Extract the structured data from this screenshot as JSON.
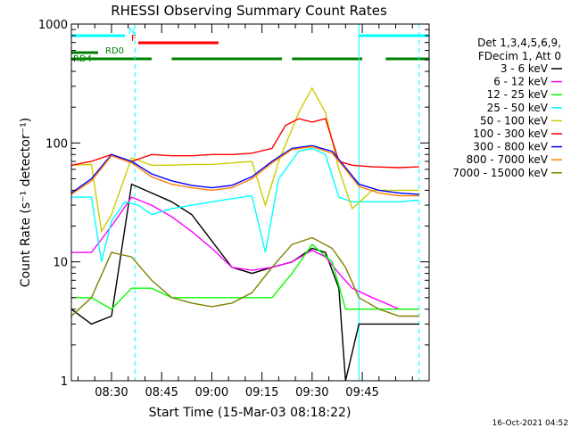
{
  "chart_data": {
    "type": "line",
    "title": "RHESSI Observing Summary Count Rates",
    "xlabel": "Start Time (15-Mar-03 08:18:22)",
    "ylabel": "Count Rate (s⁻¹ detector⁻¹)",
    "ylog": true,
    "ylim": [
      1,
      1000
    ],
    "xlim_minutes_after_0818": [
      0,
      107
    ],
    "x_ticks": [
      {
        "label": "08:30",
        "minute": 12
      },
      {
        "label": "08:45",
        "minute": 27
      },
      {
        "label": "09:00",
        "minute": 42
      },
      {
        "label": "09:15",
        "minute": 57
      },
      {
        "label": "09:30",
        "minute": 72
      },
      {
        "label": "09:45",
        "minute": 87
      }
    ],
    "y_ticks": [
      {
        "label": "1",
        "value": 1
      },
      {
        "label": "10",
        "value": 10
      },
      {
        "label": "100",
        "value": 100
      },
      {
        "label": "1000",
        "value": 1000
      }
    ],
    "legend_header": [
      "Det 1,3,4,5,6,9,",
      "FDecim 1, Att 0"
    ],
    "legend_placement": "right",
    "series": [
      {
        "name": "3 - 6 keV",
        "color": "#000000",
        "x": [
          0,
          6,
          12,
          18,
          24,
          30,
          36,
          42,
          48,
          54,
          60,
          66,
          72,
          76,
          80,
          82,
          86,
          92,
          98,
          104
        ],
        "y": [
          4,
          3,
          3.5,
          45,
          38,
          32,
          25,
          15,
          9,
          8,
          9,
          10,
          13,
          12,
          6,
          1,
          3,
          3,
          3,
          3
        ]
      },
      {
        "name": "6 - 12 keV",
        "color": "#ff00ff",
        "x": [
          0,
          6,
          12,
          18,
          24,
          30,
          36,
          42,
          48,
          54,
          60,
          66,
          72,
          76,
          80,
          84,
          90,
          98,
          104
        ],
        "y": [
          12,
          12,
          20,
          35,
          30,
          24,
          18,
          13,
          9,
          8.5,
          9,
          10,
          12.5,
          11,
          8,
          6,
          5,
          4,
          4
        ]
      },
      {
        "name": "12 - 25 keV",
        "color": "#00ff00",
        "x": [
          0,
          6,
          12,
          18,
          24,
          30,
          36,
          42,
          48,
          54,
          60,
          66,
          72,
          78,
          82,
          86,
          92,
          98,
          104
        ],
        "y": [
          5,
          5,
          4,
          6,
          6,
          5,
          5,
          5,
          5,
          5,
          5,
          8,
          14,
          10,
          4,
          4,
          4,
          4,
          4
        ]
      },
      {
        "name": "25 - 50 keV",
        "color": "#00ffff",
        "x": [
          0,
          6,
          9,
          12,
          16,
          20,
          24,
          30,
          36,
          42,
          48,
          54,
          58,
          62,
          68,
          72,
          76,
          80,
          84,
          90,
          98,
          104
        ],
        "y": [
          35,
          35,
          10,
          22,
          32,
          30,
          25,
          28,
          30,
          32,
          34,
          36,
          12,
          50,
          85,
          90,
          80,
          35,
          32,
          32,
          32,
          33
        ]
      },
      {
        "name": "50 - 100 keV",
        "color": "#cccc00",
        "x": [
          0,
          6,
          9,
          12,
          18,
          24,
          30,
          36,
          42,
          48,
          54,
          58,
          62,
          68,
          72,
          76,
          80,
          84,
          90,
          98,
          104
        ],
        "y": [
          65,
          66,
          18,
          25,
          75,
          65,
          65,
          66,
          66,
          68,
          70,
          30,
          70,
          180,
          290,
          180,
          60,
          28,
          40,
          40,
          40
        ]
      },
      {
        "name": "100 - 300 keV",
        "color": "#ff0000",
        "x": [
          0,
          6,
          12,
          18,
          24,
          30,
          36,
          42,
          48,
          54,
          60,
          64,
          68,
          72,
          76,
          80,
          84,
          90,
          98,
          104
        ],
        "y": [
          65,
          70,
          80,
          70,
          80,
          78,
          78,
          80,
          80,
          82,
          90,
          140,
          160,
          150,
          160,
          70,
          65,
          63,
          62,
          63
        ]
      },
      {
        "name": "300 - 800 keV",
        "color": "#0000ff",
        "x": [
          0,
          6,
          12,
          18,
          24,
          30,
          36,
          42,
          48,
          54,
          60,
          66,
          72,
          78,
          82,
          86,
          92,
          98,
          104
        ],
        "y": [
          38,
          50,
          80,
          70,
          55,
          48,
          44,
          42,
          44,
          52,
          70,
          90,
          95,
          85,
          62,
          45,
          40,
          38,
          37
        ]
      },
      {
        "name": "800 - 7000 keV",
        "color": "#ff8000",
        "x": [
          0,
          6,
          12,
          18,
          24,
          30,
          36,
          42,
          48,
          54,
          60,
          66,
          72,
          78,
          82,
          86,
          92,
          98,
          104
        ],
        "y": [
          37,
          48,
          78,
          68,
          52,
          45,
          42,
          40,
          42,
          50,
          68,
          88,
          93,
          82,
          60,
          43,
          38,
          36,
          36
        ]
      },
      {
        "name": "7000 - 15000 keV",
        "color": "#808000",
        "x": [
          0,
          6,
          12,
          18,
          24,
          30,
          36,
          42,
          48,
          54,
          60,
          66,
          72,
          78,
          82,
          86,
          92,
          98,
          104
        ],
        "y": [
          3.5,
          5,
          12,
          11,
          7,
          5,
          4.5,
          4.2,
          4.5,
          5.5,
          9,
          14,
          16,
          13,
          9,
          5,
          4,
          3.5,
          3.5
        ]
      }
    ],
    "flag_bars": [
      {
        "label": "N",
        "color": "#00ffff",
        "row": 1,
        "intervals": [
          [
            0,
            16
          ],
          [
            86,
            107
          ]
        ]
      },
      {
        "label": "F",
        "color": "#ff0000",
        "row": 2,
        "intervals": [
          [
            20,
            44
          ]
        ]
      },
      {
        "label": "RD0",
        "color": "#008000",
        "row": 3,
        "intervals": [
          [
            0,
            8
          ]
        ]
      },
      {
        "label": "RD4",
        "color": "#008000",
        "row": 4,
        "intervals": [
          [
            0,
            24
          ],
          [
            30,
            63
          ],
          [
            66,
            87
          ],
          [
            94,
            107
          ]
        ]
      }
    ],
    "vertical_markers": [
      {
        "minute": 19,
        "color": "#00ffff",
        "style": "dashed"
      },
      {
        "minute": 86,
        "color": "#00ffff",
        "style": "solid"
      },
      {
        "minute": 104,
        "color": "#00ffff",
        "style": "dashed"
      }
    ],
    "footer_date": "16-Oct-2021 04:52"
  }
}
